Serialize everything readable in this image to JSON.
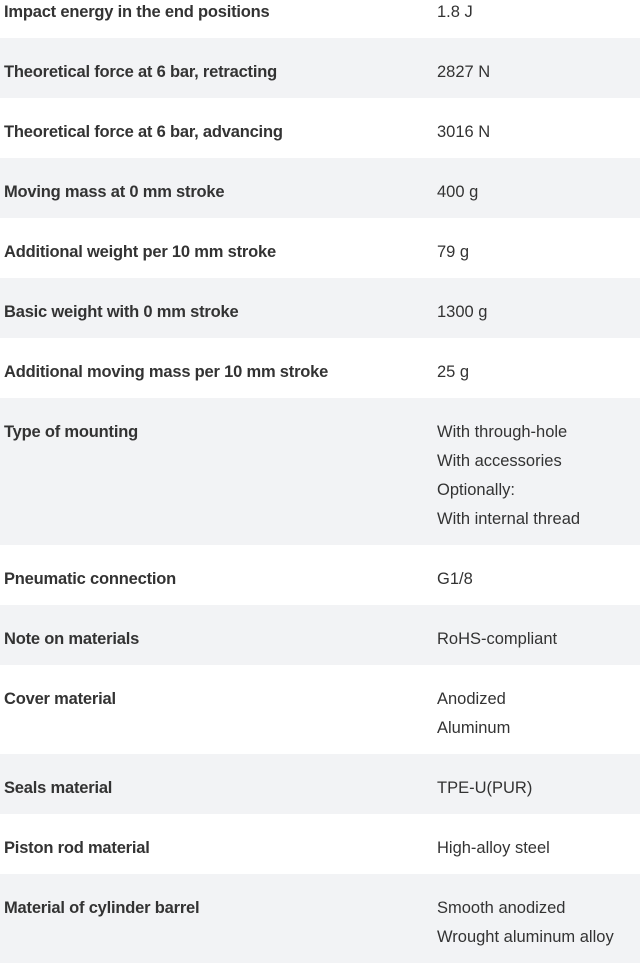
{
  "rows": [
    {
      "label": "Impact energy in the end positions",
      "value": [
        "1.8 J"
      ]
    },
    {
      "label": "Theoretical force at 6 bar, retracting",
      "value": [
        "2827 N"
      ]
    },
    {
      "label": "Theoretical force at 6 bar, advancing",
      "value": [
        "3016 N"
      ]
    },
    {
      "label": "Moving mass at 0 mm stroke",
      "value": [
        "400 g"
      ]
    },
    {
      "label": "Additional weight per 10 mm stroke",
      "value": [
        "79 g"
      ]
    },
    {
      "label": "Basic weight with 0 mm stroke",
      "value": [
        "1300 g"
      ]
    },
    {
      "label": "Additional moving mass per 10 mm stroke",
      "value": [
        "25 g"
      ]
    },
    {
      "label": "Type of mounting",
      "value": [
        "With through-hole",
        "With accessories",
        "Optionally:",
        "With internal thread"
      ]
    },
    {
      "label": "Pneumatic connection",
      "value": [
        "G1/8"
      ]
    },
    {
      "label": "Note on materials",
      "value": [
        "RoHS-compliant"
      ]
    },
    {
      "label": "Cover material",
      "value": [
        "Anodized",
        "Aluminum"
      ]
    },
    {
      "label": "Seals material",
      "value": [
        "TPE-U(PUR)"
      ]
    },
    {
      "label": "Piston rod material",
      "value": [
        "High-alloy steel"
      ]
    },
    {
      "label": "Material of cylinder barrel",
      "value": [
        "Smooth anodized",
        "Wrought aluminum alloy"
      ]
    }
  ]
}
